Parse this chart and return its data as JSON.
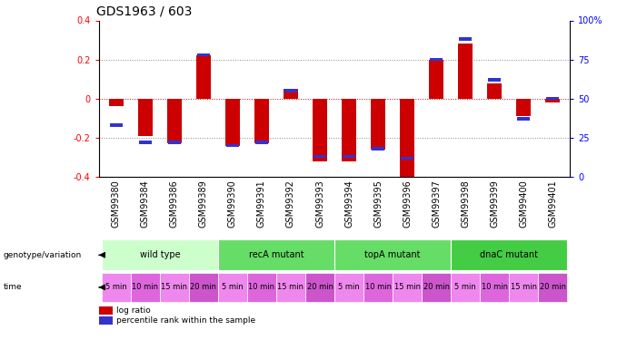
{
  "title": "GDS1963 / 603",
  "samples": [
    "GSM99380",
    "GSM99384",
    "GSM99386",
    "GSM99389",
    "GSM99390",
    "GSM99391",
    "GSM99392",
    "GSM99393",
    "GSM99394",
    "GSM99395",
    "GSM99396",
    "GSM99397",
    "GSM99398",
    "GSM99399",
    "GSM99400",
    "GSM99401"
  ],
  "log_ratio": [
    -0.04,
    -0.19,
    -0.23,
    0.22,
    -0.24,
    -0.23,
    0.05,
    -0.32,
    -0.32,
    -0.26,
    -0.4,
    0.2,
    0.28,
    0.08,
    -0.09,
    -0.02
  ],
  "pct_rank": [
    33,
    22,
    22,
    78,
    20,
    22,
    55,
    13,
    13,
    18,
    12,
    75,
    88,
    62,
    37,
    50
  ],
  "groups": [
    {
      "label": "wild type",
      "start": 0,
      "end": 3,
      "color": "#ccffcc"
    },
    {
      "label": "recA mutant",
      "start": 4,
      "end": 7,
      "color": "#66dd66"
    },
    {
      "label": "topA mutant",
      "start": 8,
      "end": 11,
      "color": "#66dd66"
    },
    {
      "label": "dnaC mutant",
      "start": 12,
      "end": 15,
      "color": "#44cc44"
    }
  ],
  "time_labels": [
    "5 min",
    "10 min",
    "15 min",
    "20 min",
    "5 min",
    "10 min",
    "15 min",
    "20 min",
    "5 min",
    "10 min",
    "15 min",
    "20 min",
    "5 min",
    "10 min",
    "15 min",
    "20 min"
  ],
  "time_colors": [
    "#ee88ee",
    "#dd66dd",
    "#ee88ee",
    "#cc55cc",
    "#ee88ee",
    "#dd66dd",
    "#ee88ee",
    "#cc55cc",
    "#ee88ee",
    "#dd66dd",
    "#ee88ee",
    "#cc55cc",
    "#ee88ee",
    "#dd66dd",
    "#ee88ee",
    "#cc55cc"
  ],
  "ylim": [
    -0.4,
    0.4
  ],
  "yticks_left": [
    -0.4,
    -0.2,
    0.0,
    0.2,
    0.4
  ],
  "yticks_right": [
    0,
    25,
    50,
    75,
    100
  ],
  "bar_color": "#cc0000",
  "dot_color": "#3333cc",
  "hline_color": "#cc0000",
  "dot_hline_color": "#cc0000",
  "bg_color": "#ffffff",
  "title_fontsize": 10,
  "tick_fontsize": 7,
  "label_fontsize": 8,
  "small_fontsize": 6
}
